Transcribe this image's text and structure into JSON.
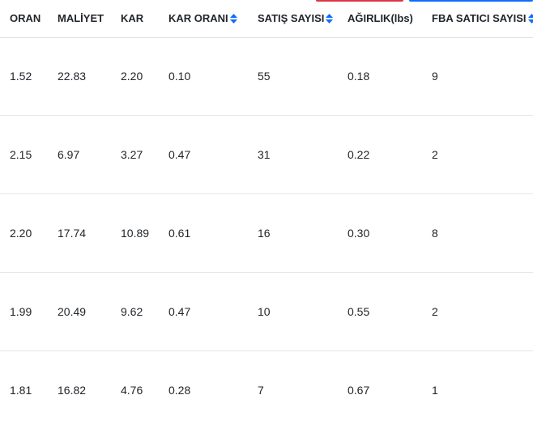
{
  "headers": [
    {
      "label": "ORAN",
      "sortable": false
    },
    {
      "label": "MALİYET",
      "sortable": false
    },
    {
      "label": "KAR",
      "sortable": false
    },
    {
      "label": "KAR ORANI",
      "sortable": true
    },
    {
      "label": "SATIŞ SAYISI",
      "sortable": true
    },
    {
      "label": "AĞIRLIK(lbs)",
      "sortable": false
    },
    {
      "label": "FBA SATICI SAYISI",
      "sortable": true
    }
  ],
  "rows": [
    [
      "1.52",
      "22.83",
      "2.20",
      "0.10",
      "55",
      "0.18",
      "9"
    ],
    [
      "2.15",
      "6.97",
      "3.27",
      "0.47",
      "31",
      "0.22",
      "2"
    ],
    [
      "2.20",
      "17.74",
      "10.89",
      "0.61",
      "16",
      "0.30",
      "8"
    ],
    [
      "1.99",
      "20.49",
      "9.62",
      "0.47",
      "10",
      "0.55",
      "2"
    ],
    [
      "1.81",
      "16.82",
      "4.76",
      "0.28",
      "7",
      "0.67",
      "1"
    ]
  ],
  "colors": {
    "sort_icon": "#0d6efd",
    "top_strip_red": "#dc3545",
    "top_strip_blue": "#0d6efd"
  },
  "icons": {
    "sort": "sort-arrows-icon"
  }
}
